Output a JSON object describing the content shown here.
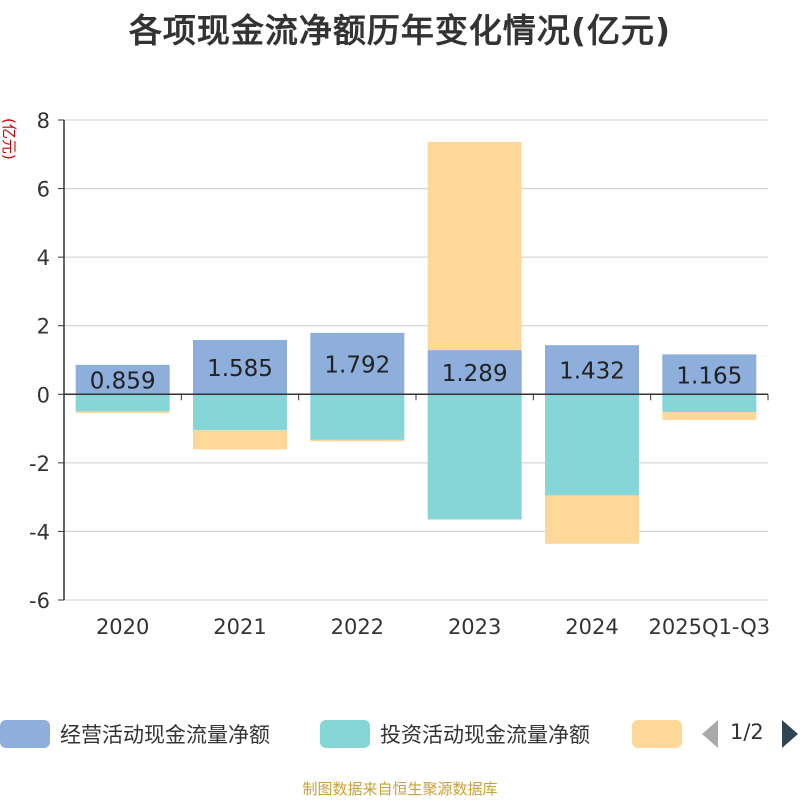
{
  "title": "各项现金流净额历年变化情况(亿元)",
  "source": "制图数据来自恒生聚源数据库",
  "legend": {
    "items": [
      {
        "name": "经营活动现金流量净额",
        "color": "#8eaedc"
      },
      {
        "name": "投资活动现金流量净额",
        "color": "#86d5d7"
      },
      {
        "name": "",
        "color": "#fdd899"
      }
    ],
    "page": "1/2"
  },
  "chart_data": {
    "type": "bar",
    "stacked": true,
    "ylabel": "(亿元)",
    "ylim": [
      -6,
      8
    ],
    "yticks": [
      -6,
      -4,
      -2,
      0,
      2,
      4,
      6,
      8
    ],
    "categories": [
      "2020",
      "2021",
      "2022",
      "2023",
      "2024",
      "2025Q1-Q3"
    ],
    "series": [
      {
        "name": "经营活动现金流量净额",
        "color": "#8eaedc",
        "values": [
          0.859,
          1.585,
          1.792,
          1.289,
          1.432,
          1.165
        ],
        "labels": [
          "0.859",
          "1.585",
          "1.792",
          "1.289",
          "1.432",
          "1.165"
        ]
      },
      {
        "name": "投资活动现金流量净额",
        "color": "#86d5d7",
        "values": [
          -0.5,
          -1.05,
          -1.33,
          -3.65,
          -2.95,
          -0.52
        ]
      },
      {
        "name": "",
        "color": "#fdd899",
        "values": [
          -0.05,
          -0.56,
          -0.04,
          6.07,
          -1.41,
          -0.23
        ]
      }
    ],
    "grid": true
  }
}
